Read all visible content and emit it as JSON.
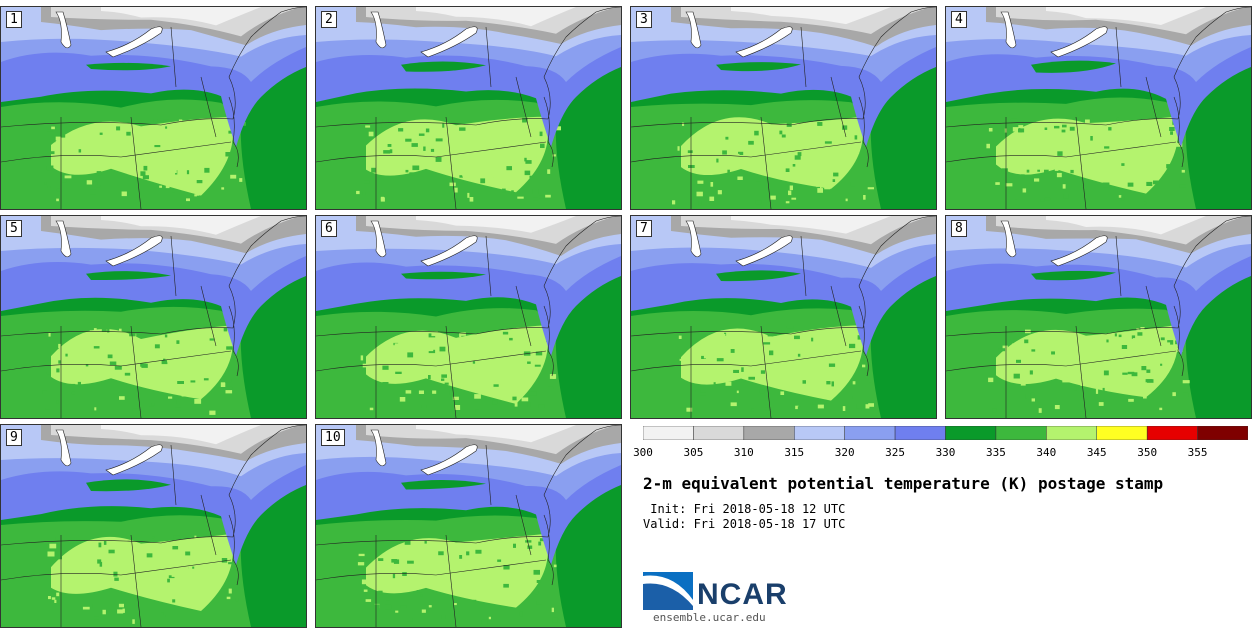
{
  "panels": [
    "1",
    "2",
    "3",
    "4",
    "5",
    "6",
    "7",
    "8",
    "9",
    "10"
  ],
  "colorbar": {
    "ticks": [
      "300",
      "305",
      "310",
      "315",
      "320",
      "325",
      "330",
      "335",
      "340",
      "345",
      "350",
      "355"
    ],
    "bins": [
      {
        "min": 300,
        "max": 305,
        "color": "#f2f2f2"
      },
      {
        "min": 305,
        "max": 310,
        "color": "#d9d9d9"
      },
      {
        "min": 310,
        "max": 315,
        "color": "#a8a8a8"
      },
      {
        "min": 315,
        "max": 320,
        "color": "#b8c8f6"
      },
      {
        "min": 320,
        "max": 325,
        "color": "#8a9ff0"
      },
      {
        "min": 325,
        "max": 330,
        "color": "#6f7fef"
      },
      {
        "min": 330,
        "max": 335,
        "color": "#0a9a2a"
      },
      {
        "min": 335,
        "max": 340,
        "color": "#3db83d"
      },
      {
        "min": 340,
        "max": 345,
        "color": "#b4f36e"
      },
      {
        "min": 345,
        "max": 350,
        "color": "#ffff22"
      },
      {
        "min": 350,
        "max": 355,
        "color": "#e60000"
      },
      {
        "min": 355,
        "max": 360,
        "color": "#7f0000"
      }
    ]
  },
  "title": "2-m equivalent potential temperature (K) postage stamp",
  "init": " Init: Fri 2018-05-18 12 UTC",
  "valid": "Valid: Fri 2018-05-18 17 UTC",
  "logo": {
    "text": "NCAR",
    "site": "ensemble.ucar.edu"
  }
}
